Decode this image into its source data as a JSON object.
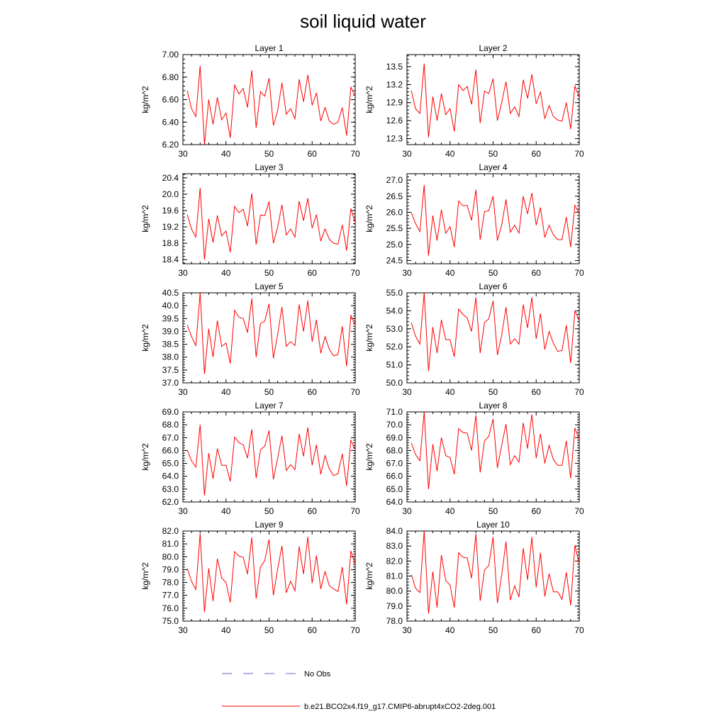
{
  "title": "soil liquid water",
  "colors": {
    "series": "#ff0000",
    "obs": "#6666cc",
    "axis": "#000000"
  },
  "legend": {
    "obs_label": "No Obs",
    "series_label": "b.e21.BCO2x4.f19_g17.CMIP6-abrupt4xCO2-2deg.001"
  },
  "chart_data": [
    {
      "type": "line",
      "title": "Layer 1",
      "xlabel": "",
      "ylabel": "kg/m^2",
      "xlim": [
        30,
        70
      ],
      "ylim": [
        6.2,
        7.0
      ],
      "xticks": [
        "30",
        "40",
        "50",
        "60",
        "70"
      ],
      "yticks": [
        "6.20",
        "6.40",
        "6.60",
        "6.80",
        "7.00"
      ],
      "x": [
        31,
        32,
        33,
        34,
        35,
        36,
        37,
        38,
        39,
        40,
        41,
        42,
        43,
        44,
        45,
        46,
        47,
        48,
        49,
        50,
        51,
        52,
        53,
        54,
        55,
        56,
        57,
        58,
        59,
        60,
        61,
        62,
        63,
        64,
        65,
        66,
        67,
        68,
        69,
        70
      ],
      "values": [
        6.68,
        6.52,
        6.45,
        6.9,
        6.2,
        6.6,
        6.38,
        6.62,
        6.42,
        6.48,
        6.26,
        6.73,
        6.65,
        6.7,
        6.53,
        6.86,
        6.35,
        6.67,
        6.63,
        6.79,
        6.37,
        6.5,
        6.75,
        6.47,
        6.52,
        6.43,
        6.78,
        6.58,
        6.82,
        6.55,
        6.66,
        6.41,
        6.53,
        6.41,
        6.38,
        6.4,
        6.53,
        6.28,
        6.71,
        6.63
      ]
    },
    {
      "type": "line",
      "title": "Layer 2",
      "xlabel": "",
      "ylabel": "kg/m^2",
      "xlim": [
        30,
        70
      ],
      "ylim": [
        12.2,
        13.7
      ],
      "xticks": [
        "30",
        "40",
        "50",
        "60",
        "70"
      ],
      "yticks": [
        "12.3",
        "12.6",
        "12.9",
        "13.2",
        "13.5"
      ],
      "x": [
        31,
        32,
        33,
        34,
        35,
        36,
        37,
        38,
        39,
        40,
        41,
        42,
        43,
        44,
        45,
        46,
        47,
        48,
        49,
        50,
        51,
        52,
        53,
        54,
        55,
        56,
        57,
        58,
        59,
        60,
        61,
        62,
        63,
        64,
        65,
        66,
        67,
        68,
        69,
        70
      ],
      "values": [
        13.1,
        12.8,
        12.72,
        13.55,
        12.32,
        13.0,
        12.6,
        13.05,
        12.7,
        12.8,
        12.42,
        13.2,
        13.1,
        13.17,
        12.87,
        13.45,
        12.56,
        13.09,
        13.05,
        13.3,
        12.6,
        12.9,
        13.25,
        12.72,
        12.83,
        12.67,
        13.28,
        12.97,
        13.37,
        12.88,
        13.08,
        12.63,
        12.85,
        12.67,
        12.61,
        12.59,
        12.9,
        12.46,
        13.18,
        12.98
      ]
    },
    {
      "type": "line",
      "title": "Layer 3",
      "xlabel": "",
      "ylabel": "kg/m^2",
      "xlim": [
        30,
        70
      ],
      "ylim": [
        18.3,
        20.5
      ],
      "xticks": [
        "30",
        "40",
        "50",
        "60",
        "70"
      ],
      "yticks": [
        "18.4",
        "18.8",
        "19.2",
        "19.6",
        "20.0",
        "20.4"
      ],
      "x": [
        31,
        32,
        33,
        34,
        35,
        36,
        37,
        38,
        39,
        40,
        41,
        42,
        43,
        44,
        45,
        46,
        47,
        48,
        49,
        50,
        51,
        52,
        53,
        54,
        55,
        56,
        57,
        58,
        59,
        60,
        61,
        62,
        63,
        64,
        65,
        66,
        67,
        68,
        69,
        70
      ],
      "values": [
        19.5,
        19.15,
        18.95,
        20.15,
        18.4,
        19.4,
        18.82,
        19.48,
        18.98,
        19.1,
        18.58,
        19.7,
        19.55,
        19.63,
        19.22,
        20.02,
        18.77,
        19.49,
        19.48,
        19.82,
        18.8,
        19.2,
        19.74,
        19.0,
        19.15,
        18.95,
        19.83,
        19.35,
        19.9,
        19.17,
        19.5,
        18.85,
        19.15,
        18.9,
        18.8,
        18.78,
        19.25,
        18.62,
        19.65,
        19.3
      ]
    },
    {
      "type": "line",
      "title": "Layer 4",
      "xlabel": "",
      "ylabel": "kg/m^2",
      "xlim": [
        30,
        70
      ],
      "ylim": [
        24.4,
        27.2
      ],
      "xticks": [
        "30",
        "40",
        "50",
        "60",
        "70"
      ],
      "yticks": [
        "24.5",
        "25.0",
        "25.5",
        "26.0",
        "26.5",
        "27.0"
      ],
      "x": [
        31,
        32,
        33,
        34,
        35,
        36,
        37,
        38,
        39,
        40,
        41,
        42,
        43,
        44,
        45,
        46,
        47,
        48,
        49,
        50,
        51,
        52,
        53,
        54,
        55,
        56,
        57,
        58,
        59,
        60,
        61,
        62,
        63,
        64,
        65,
        66,
        67,
        68,
        69,
        70
      ],
      "values": [
        26.0,
        25.65,
        25.4,
        26.85,
        24.65,
        25.9,
        25.12,
        26.08,
        25.35,
        25.55,
        24.92,
        26.35,
        26.2,
        26.22,
        25.75,
        26.7,
        25.15,
        26.02,
        26.05,
        26.5,
        25.12,
        25.6,
        26.4,
        25.38,
        25.6,
        25.35,
        26.5,
        25.95,
        26.6,
        25.6,
        26.15,
        25.22,
        25.6,
        25.3,
        25.15,
        25.15,
        25.85,
        24.92,
        26.22,
        25.95
      ]
    },
    {
      "type": "line",
      "title": "Layer 5",
      "xlabel": "",
      "ylabel": "kg/m^2",
      "xlim": [
        30,
        70
      ],
      "ylim": [
        37.0,
        40.5
      ],
      "xticks": [
        "30",
        "40",
        "50",
        "60",
        "70"
      ],
      "yticks": [
        "37.0",
        "37.5",
        "38.0",
        "38.5",
        "39.0",
        "39.5",
        "40.0",
        "40.5"
      ],
      "x": [
        31,
        32,
        33,
        34,
        35,
        36,
        37,
        38,
        39,
        40,
        41,
        42,
        43,
        44,
        45,
        46,
        47,
        48,
        49,
        50,
        51,
        52,
        53,
        54,
        55,
        56,
        57,
        58,
        59,
        60,
        61,
        62,
        63,
        64,
        65,
        66,
        67,
        68,
        69,
        70
      ],
      "values": [
        39.25,
        38.8,
        38.45,
        40.5,
        37.35,
        39.1,
        38.0,
        39.42,
        38.42,
        38.55,
        37.75,
        39.82,
        39.55,
        39.5,
        38.95,
        40.28,
        38.0,
        39.3,
        39.4,
        40.07,
        37.95,
        38.88,
        39.95,
        38.42,
        38.6,
        38.45,
        40.05,
        39.0,
        40.2,
        38.6,
        39.45,
        38.15,
        38.8,
        38.3,
        38.05,
        38.1,
        39.2,
        37.65,
        39.62,
        39.25
      ]
    },
    {
      "type": "line",
      "title": "Layer 6",
      "xlabel": "",
      "ylabel": "kg/m^2",
      "xlim": [
        30,
        70
      ],
      "ylim": [
        50.0,
        55.0
      ],
      "xticks": [
        "30",
        "40",
        "50",
        "60",
        "70"
      ],
      "yticks": [
        "50.0",
        "51.0",
        "52.0",
        "53.0",
        "54.0",
        "55.0"
      ],
      "x": [
        31,
        32,
        33,
        34,
        35,
        36,
        37,
        38,
        39,
        40,
        41,
        42,
        43,
        44,
        45,
        46,
        47,
        48,
        49,
        50,
        51,
        52,
        53,
        54,
        55,
        56,
        57,
        58,
        59,
        60,
        61,
        62,
        63,
        64,
        65,
        66,
        67,
        68,
        69,
        70
      ],
      "values": [
        53.35,
        52.6,
        52.15,
        55.0,
        50.65,
        53.1,
        51.65,
        53.5,
        52.4,
        52.4,
        51.45,
        54.1,
        53.8,
        53.6,
        52.85,
        54.75,
        51.65,
        53.35,
        53.55,
        54.55,
        51.55,
        52.65,
        54.2,
        52.15,
        52.45,
        52.15,
        54.35,
        53.05,
        54.75,
        52.45,
        53.85,
        51.85,
        52.85,
        52.2,
        51.75,
        51.8,
        53.2,
        51.1,
        54.0,
        53.45
      ]
    },
    {
      "type": "line",
      "title": "Layer 7",
      "xlabel": "",
      "ylabel": "kg/m^2",
      "xlim": [
        30,
        70
      ],
      "ylim": [
        62.0,
        69.0
      ],
      "xticks": [
        "30",
        "40",
        "50",
        "60",
        "70"
      ],
      "yticks": [
        "62.0",
        "63.0",
        "64.0",
        "65.0",
        "66.0",
        "67.0",
        "68.0",
        "69.0"
      ],
      "x": [
        31,
        32,
        33,
        34,
        35,
        36,
        37,
        38,
        39,
        40,
        41,
        42,
        43,
        44,
        45,
        46,
        47,
        48,
        49,
        50,
        51,
        52,
        53,
        54,
        55,
        56,
        57,
        58,
        59,
        60,
        61,
        62,
        63,
        64,
        65,
        66,
        67,
        68,
        69,
        70
      ],
      "values": [
        66.05,
        65.2,
        64.7,
        68.0,
        62.5,
        65.8,
        63.8,
        66.15,
        64.85,
        64.85,
        63.6,
        67.05,
        66.6,
        66.45,
        65.4,
        67.65,
        63.85,
        66.05,
        66.35,
        67.55,
        63.75,
        65.4,
        67.15,
        64.45,
        64.9,
        64.5,
        67.3,
        65.55,
        67.8,
        64.85,
        66.45,
        64.15,
        65.6,
        64.55,
        64.05,
        64.2,
        65.75,
        63.25,
        66.8,
        66.05
      ]
    },
    {
      "type": "line",
      "title": "Layer 8",
      "xlabel": "",
      "ylabel": "kg/m^2",
      "xlim": [
        30,
        70
      ],
      "ylim": [
        64.0,
        71.0
      ],
      "xticks": [
        "30",
        "40",
        "50",
        "60",
        "70"
      ],
      "yticks": [
        "64.0",
        "65.0",
        "66.0",
        "67.0",
        "68.0",
        "69.0",
        "70.0",
        "71.0"
      ],
      "x": [
        31,
        32,
        33,
        34,
        35,
        36,
        37,
        38,
        39,
        40,
        41,
        42,
        43,
        44,
        45,
        46,
        47,
        48,
        49,
        50,
        51,
        52,
        53,
        54,
        55,
        56,
        57,
        58,
        59,
        60,
        61,
        62,
        63,
        64,
        65,
        66,
        67,
        68,
        69,
        70
      ],
      "values": [
        68.6,
        67.7,
        67.2,
        71.0,
        65.0,
        68.5,
        66.4,
        69.0,
        67.6,
        67.45,
        66.15,
        69.7,
        69.4,
        69.35,
        68.0,
        70.75,
        66.3,
        68.75,
        69.1,
        70.45,
        66.65,
        68.4,
        70.05,
        66.9,
        67.6,
        67.1,
        70.15,
        68.15,
        70.8,
        67.4,
        69.3,
        67.0,
        68.4,
        67.3,
        66.85,
        66.85,
        68.75,
        65.85,
        69.75,
        68.85
      ]
    },
    {
      "type": "line",
      "title": "Layer 9",
      "xlabel": "",
      "ylabel": "kg/m^2",
      "xlim": [
        30,
        70
      ],
      "ylim": [
        75.0,
        82.0
      ],
      "xticks": [
        "30",
        "40",
        "50",
        "60",
        "70"
      ],
      "yticks": [
        "75.0",
        "76.0",
        "77.0",
        "78.0",
        "79.0",
        "80.0",
        "81.0",
        "82.0"
      ],
      "x": [
        31,
        32,
        33,
        34,
        35,
        36,
        37,
        38,
        39,
        40,
        41,
        42,
        43,
        44,
        45,
        46,
        47,
        48,
        49,
        50,
        51,
        52,
        53,
        54,
        55,
        56,
        57,
        58,
        59,
        60,
        61,
        62,
        63,
        64,
        65,
        66,
        67,
        68,
        69,
        70
      ],
      "values": [
        79.1,
        78.1,
        77.45,
        81.8,
        75.7,
        79.1,
        76.55,
        79.85,
        78.35,
        78.0,
        76.45,
        80.4,
        80.05,
        79.95,
        78.65,
        81.5,
        76.75,
        79.2,
        79.7,
        81.35,
        77.0,
        79.05,
        80.85,
        77.2,
        78.1,
        77.35,
        80.8,
        78.65,
        81.55,
        77.95,
        80.1,
        77.5,
        78.85,
        77.75,
        77.5,
        77.3,
        79.2,
        76.3,
        80.45,
        79.4
      ]
    },
    {
      "type": "line",
      "title": "Layer 10",
      "xlabel": "",
      "ylabel": "kg/m^2",
      "xlim": [
        30,
        70
      ],
      "ylim": [
        78.0,
        84.0
      ],
      "xticks": [
        "30",
        "40",
        "50",
        "60",
        "70"
      ],
      "yticks": [
        "78.0",
        "79.0",
        "80.0",
        "81.0",
        "82.0",
        "83.0",
        "84.0"
      ],
      "x": [
        31,
        32,
        33,
        34,
        35,
        36,
        37,
        38,
        39,
        40,
        41,
        42,
        43,
        44,
        45,
        46,
        47,
        48,
        49,
        50,
        51,
        52,
        53,
        54,
        55,
        56,
        57,
        58,
        59,
        60,
        61,
        62,
        63,
        64,
        65,
        66,
        67,
        68,
        69,
        70
      ],
      "values": [
        81.1,
        80.2,
        79.9,
        84.0,
        78.5,
        81.3,
        78.9,
        82.4,
        80.7,
        80.4,
        78.9,
        82.55,
        82.25,
        82.2,
        80.85,
        83.8,
        79.35,
        81.4,
        81.7,
        83.6,
        79.2,
        81.05,
        83.3,
        79.4,
        80.35,
        79.6,
        82.85,
        80.75,
        83.6,
        80.25,
        82.55,
        79.65,
        81.15,
        79.95,
        79.95,
        79.45,
        81.25,
        79.05,
        83.05,
        81.8
      ]
    }
  ]
}
